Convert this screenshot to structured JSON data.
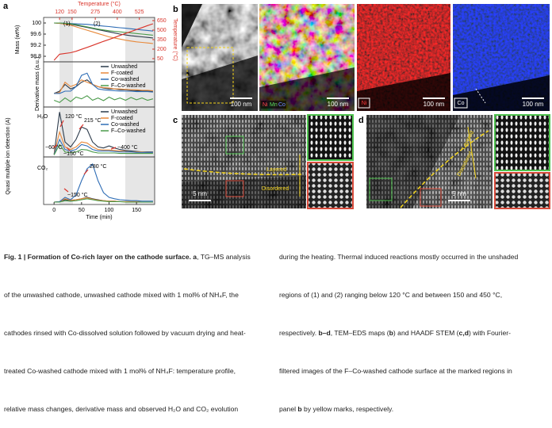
{
  "panel_labels": [
    "a",
    "b",
    "c",
    "d"
  ],
  "chart_data": [
    {
      "type": "line",
      "ylabel": "Mass (wt%)",
      "y2label": "Temperature (°C)",
      "x2label": "Temperature (°C)",
      "x": [
        0,
        10,
        20,
        30,
        40,
        50,
        60,
        70,
        80,
        90,
        100,
        110,
        120,
        130,
        140,
        150,
        160,
        170,
        180
      ],
      "xlim": [
        -19,
        183
      ],
      "ylim": [
        98.6,
        100.2
      ],
      "yticks": [
        98.8,
        99.2,
        99.6,
        100
      ],
      "y2lim": [
        0,
        700
      ],
      "y2ticks": [
        50,
        200,
        350,
        500,
        650
      ],
      "x2ticks": [
        120,
        150,
        275,
        400,
        525
      ],
      "annotations": [
        "(1)",
        "(2)"
      ],
      "series": [
        {
          "color": "#2b3a4a",
          "values": [
            100,
            99.99,
            99.97,
            99.95,
            99.92,
            99.88,
            99.84,
            99.8,
            99.76,
            99.72,
            99.68,
            99.64,
            99.6,
            99.57,
            99.54,
            99.52,
            99.5,
            99.48,
            99.46
          ]
        },
        {
          "color": "#e8893a",
          "values": [
            100,
            99.99,
            99.96,
            99.92,
            99.86,
            99.8,
            99.74,
            99.68,
            99.62,
            99.56,
            99.5,
            99.46,
            99.42,
            99.38,
            99.35,
            99.32,
            99.3,
            99.28,
            99.26
          ]
        },
        {
          "color": "#2f6db5",
          "values": [
            100,
            100,
            99.99,
            99.98,
            99.97,
            99.96,
            99.95,
            99.93,
            99.91,
            99.89,
            99.87,
            99.85,
            99.83,
            99.81,
            99.79,
            99.77,
            99.75,
            99.73,
            99.71
          ]
        },
        {
          "color": "#4a9a4a",
          "values": [
            100,
            100,
            99.99,
            99.97,
            99.94,
            99.9,
            99.86,
            99.82,
            99.78,
            99.75,
            99.72,
            99.7,
            99.68,
            99.66,
            99.64,
            99.62,
            99.6,
            99.58,
            99.56
          ]
        },
        {
          "color": "#d9342b",
          "axis": "y2",
          "values": [
            25,
            120,
            132,
            144,
            166,
            197,
            228,
            259,
            291,
            322,
            353,
            384,
            416,
            447,
            478,
            509,
            540,
            571,
            600
          ]
        }
      ]
    },
    {
      "type": "line",
      "ylabel": "Derivative mass (a.u.)",
      "legend": "upper right",
      "x": [
        0,
        10,
        20,
        30,
        40,
        50,
        60,
        70,
        80,
        90,
        100,
        110,
        120,
        130,
        140,
        150,
        160,
        170,
        180
      ],
      "xlim": [
        -19,
        183
      ],
      "ylim": [
        0,
        1
      ],
      "series": [
        {
          "name": "Unwashed",
          "color": "#2b3a4a",
          "values": [
            0.3,
            0.35,
            0.5,
            0.4,
            0.45,
            0.55,
            0.6,
            0.5,
            0.45,
            0.42,
            0.4,
            0.4,
            0.38,
            0.38,
            0.37,
            0.36,
            0.36,
            0.35,
            0.35
          ]
        },
        {
          "name": "F-coated",
          "color": "#e8893a",
          "values": [
            0.3,
            0.32,
            0.55,
            0.45,
            0.5,
            0.6,
            0.55,
            0.5,
            0.45,
            0.43,
            0.42,
            0.4,
            0.4,
            0.39,
            0.38,
            0.38,
            0.37,
            0.37,
            0.36
          ]
        },
        {
          "name": "Co-washed",
          "color": "#2f6db5",
          "values": [
            0.3,
            0.3,
            0.35,
            0.35,
            0.45,
            0.7,
            0.75,
            0.5,
            0.4,
            0.38,
            0.37,
            0.36,
            0.35,
            0.35,
            0.35,
            0.34,
            0.34,
            0.34,
            0.33
          ]
        },
        {
          "name": "F–Co-washed",
          "color": "#4a9a4a",
          "values": [
            0.15,
            0.1,
            0.2,
            0.12,
            0.22,
            0.18,
            0.25,
            0.15,
            0.2,
            0.14,
            0.22,
            0.16,
            0.2,
            0.15,
            0.21,
            0.16,
            0.2,
            0.15,
            0.18
          ]
        }
      ]
    },
    {
      "type": "line",
      "label": "H₂O",
      "legend": "upper right",
      "x": [
        0,
        10,
        20,
        30,
        40,
        50,
        60,
        70,
        80,
        90,
        100,
        110,
        120,
        130,
        140,
        150,
        160,
        170,
        180
      ],
      "xlim": [
        -19,
        183
      ],
      "ylim": [
        0,
        1
      ],
      "annotations": [
        "120 °C",
        "215 °C",
        "~60 °C",
        "~150 °C",
        "~400 °C"
      ],
      "series": [
        {
          "name": "Unwashed",
          "color": "#2b3a4a",
          "values": [
            0.05,
            0.9,
            0.3,
            0.2,
            0.35,
            0.6,
            0.55,
            0.3,
            0.2,
            0.18,
            0.22,
            0.18,
            0.15,
            0.13,
            0.12,
            0.11,
            0.1,
            0.1,
            0.1
          ]
        },
        {
          "name": "F-coated",
          "color": "#e8893a",
          "values": [
            0.05,
            0.5,
            0.2,
            0.15,
            0.2,
            0.3,
            0.28,
            0.2,
            0.15,
            0.14,
            0.14,
            0.13,
            0.12,
            0.11,
            0.1,
            0.1,
            0.1,
            0.09,
            0.09
          ]
        },
        {
          "name": "Co-washed",
          "color": "#2f6db5",
          "values": [
            0.05,
            0.35,
            0.15,
            0.12,
            0.15,
            0.25,
            0.22,
            0.15,
            0.12,
            0.12,
            0.12,
            0.11,
            0.1,
            0.1,
            0.1,
            0.09,
            0.09,
            0.09,
            0.09
          ]
        },
        {
          "name": "F–Co-washed",
          "color": "#4a9a4a",
          "values": [
            0.04,
            0.25,
            0.1,
            0.08,
            0.1,
            0.15,
            0.14,
            0.1,
            0.08,
            0.08,
            0.08,
            0.08,
            0.07,
            0.07,
            0.07,
            0.07,
            0.07,
            0.07,
            0.07
          ]
        }
      ]
    },
    {
      "type": "line",
      "label": "CO₂",
      "ylabel": "Quasi multiple ion detection (A)",
      "xlabel": "Time (min)",
      "x": [
        0,
        10,
        20,
        30,
        40,
        50,
        60,
        70,
        80,
        90,
        100,
        110,
        120,
        130,
        140,
        150,
        160,
        170,
        180
      ],
      "xlim": [
        -19,
        183
      ],
      "ylim": [
        0,
        1
      ],
      "xticks": [
        0,
        50,
        100,
        150
      ],
      "annotations": [
        "280 °C",
        "~150 °C"
      ],
      "series": [
        {
          "color": "#2b3a4a",
          "values": [
            0.05,
            0.06,
            0.1,
            0.08,
            0.1,
            0.12,
            0.15,
            0.12,
            0.1,
            0.08,
            0.07,
            0.07,
            0.06,
            0.06,
            0.06,
            0.06,
            0.05,
            0.05,
            0.05
          ]
        },
        {
          "color": "#e8893a",
          "values": [
            0.05,
            0.06,
            0.12,
            0.09,
            0.1,
            0.12,
            0.14,
            0.11,
            0.09,
            0.08,
            0.07,
            0.07,
            0.06,
            0.06,
            0.06,
            0.06,
            0.05,
            0.05,
            0.05
          ]
        },
        {
          "color": "#2f6db5",
          "values": [
            0.05,
            0.06,
            0.15,
            0.1,
            0.2,
            0.5,
            0.75,
            0.85,
            0.5,
            0.25,
            0.15,
            0.12,
            0.1,
            0.09,
            0.08,
            0.08,
            0.07,
            0.07,
            0.07
          ]
        },
        {
          "color": "#4a9a4a",
          "values": [
            0.05,
            0.05,
            0.08,
            0.07,
            0.08,
            0.1,
            0.12,
            0.1,
            0.08,
            0.07,
            0.06,
            0.06,
            0.06,
            0.05,
            0.05,
            0.05,
            0.05,
            0.05,
            0.05
          ]
        }
      ]
    }
  ],
  "panel_b": {
    "maps": [
      {
        "scale_bar": "100 nm"
      },
      {
        "scale_bar": "100 nm",
        "elements": [
          "Ni",
          "Mn",
          "Co"
        ]
      },
      {
        "scale_bar": "100 nm",
        "element": "Ni"
      },
      {
        "scale_bar": "100 nm",
        "element": "Co"
      }
    ]
  },
  "panel_c": {
    "layered": "Layered",
    "disordered": "Disordered",
    "scale_bar": "5 nm"
  },
  "panel_d": {
    "layered": "Layered",
    "disordered": "Disordered",
    "scale_bar": "5 nm"
  },
  "caption": {
    "left": [
      [
        "Fig. 1 | Formation of Co-rich layer on the cathode surface.",
        "a",
        ", TG–MS analysis"
      ],
      [
        "of the unwashed cathode, unwashed cathode mixed with 1 mol% of NH₄F, the"
      ],
      [
        "cathodes rinsed with Co-dissolved solution followed by vacuum drying and heat-"
      ],
      [
        "treated Co-washed cathode mixed with 1 mol% of NH₄F: temperature profile,"
      ],
      [
        "relative mass changes, derivative mass and observed H₂O and CO₂ evolution"
      ]
    ],
    "right": [
      [
        "during the heating. Thermal induced reactions mostly occurred in the unshaded"
      ],
      [
        "regions of (1) and (2) ranging below 120 °C and between 150 and 450 °C,"
      ],
      [
        "respectively. ",
        "b–d",
        ", TEM–EDS maps (",
        "b",
        ") and HAADF STEM (",
        "c,d",
        ") with Fourier-"
      ],
      [
        "filtered images of the F–Co-washed cathode surface at the marked regions in"
      ],
      [
        "panel ",
        "b",
        " by yellow marks, respectively."
      ]
    ]
  }
}
